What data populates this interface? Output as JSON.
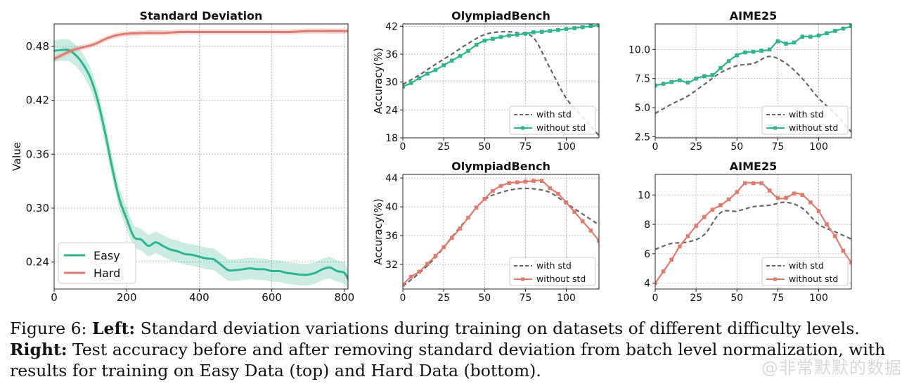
{
  "caption": {
    "fig_label": "Figure 6:",
    "left_bold": "Left:",
    "left_text": "Standard deviation variations during training on datasets of different difficulty levels.",
    "right_bold": "Right:",
    "right_text": "Test accuracy before and after removing standard deviation from batch level normalization, with results for training on Easy Data (top) and Hard Data (bottom)."
  },
  "watermark": "@非常默默的数据",
  "colors": {
    "easy": "#2db58e",
    "hard": "#e07b6e",
    "with_std": "#666666"
  },
  "chart_data": [
    {
      "id": "std",
      "type": "line",
      "title": "Standard Deviation",
      "xlabel": "",
      "ylabel": "Value",
      "xlim": [
        0,
        810
      ],
      "ylim": [
        0.21,
        0.505
      ],
      "xticks": [
        0,
        200,
        400,
        600,
        800
      ],
      "yticks": [
        0.24,
        0.3,
        0.36,
        0.42,
        0.48
      ],
      "ytick_labels": [
        "0.24",
        "0.30",
        "0.36",
        "0.42",
        "0.48"
      ],
      "grid": true,
      "legend": "lower-left",
      "series": [
        {
          "name": "Easy",
          "color": "easy",
          "band": 0.012,
          "x": [
            0,
            20,
            40,
            60,
            80,
            100,
            120,
            140,
            160,
            180,
            200,
            220,
            240,
            260,
            280,
            300,
            320,
            340,
            360,
            380,
            400,
            420,
            440,
            460,
            480,
            500,
            520,
            540,
            560,
            580,
            600,
            620,
            640,
            660,
            680,
            700,
            720,
            740,
            760,
            780,
            800,
            810
          ],
          "y": [
            0.475,
            0.476,
            0.476,
            0.47,
            0.46,
            0.445,
            0.42,
            0.385,
            0.345,
            0.31,
            0.288,
            0.268,
            0.265,
            0.258,
            0.262,
            0.258,
            0.254,
            0.252,
            0.249,
            0.248,
            0.246,
            0.244,
            0.243,
            0.237,
            0.231,
            0.231,
            0.232,
            0.233,
            0.232,
            0.232,
            0.23,
            0.23,
            0.228,
            0.227,
            0.226,
            0.226,
            0.228,
            0.232,
            0.234,
            0.23,
            0.228,
            0.221
          ]
        },
        {
          "name": "Hard",
          "color": "hard",
          "band": 0.003,
          "x": [
            0,
            20,
            40,
            60,
            80,
            100,
            120,
            140,
            160,
            180,
            200,
            250,
            300,
            350,
            400,
            450,
            500,
            550,
            600,
            650,
            700,
            750,
            800,
            810
          ],
          "y": [
            0.466,
            0.47,
            0.474,
            0.477,
            0.479,
            0.481,
            0.484,
            0.488,
            0.491,
            0.493,
            0.494,
            0.495,
            0.495,
            0.496,
            0.496,
            0.496,
            0.496,
            0.496,
            0.496,
            0.496,
            0.497,
            0.497,
            0.497,
            0.497
          ]
        }
      ]
    },
    {
      "id": "oly_easy",
      "type": "line",
      "title": "OlympiadBench",
      "xlabel": "",
      "ylabel": "Accuracy(%)",
      "xlim": [
        0,
        120
      ],
      "ylim": [
        18,
        42.5
      ],
      "xticks": [
        0,
        25,
        50,
        75,
        100
      ],
      "yticks": [
        18,
        24,
        30,
        36,
        42
      ],
      "ytick_labels": [
        "18",
        "24",
        "30",
        "36",
        "42"
      ],
      "grid": true,
      "legend": "lower-right",
      "series": [
        {
          "name": "with std",
          "color": "with_std",
          "dashed": true,
          "x": [
            0,
            10,
            20,
            30,
            40,
            50,
            60,
            70,
            80,
            90,
            100,
            110,
            120
          ],
          "y": [
            29.5,
            31.5,
            33.8,
            36,
            38.3,
            40.2,
            40.8,
            40.6,
            39.5,
            33,
            26.5,
            22.5,
            18.5
          ]
        },
        {
          "name": "without std",
          "color": "easy",
          "markers": true,
          "x": [
            0,
            5,
            10,
            15,
            20,
            25,
            30,
            35,
            40,
            45,
            50,
            55,
            60,
            65,
            70,
            75,
            80,
            85,
            90,
            95,
            100,
            105,
            110,
            115,
            120
          ],
          "y": [
            29,
            29.8,
            30.8,
            31.8,
            32.6,
            33.6,
            34.6,
            35.6,
            36.7,
            38,
            38.9,
            39.3,
            39.7,
            40,
            40.2,
            40.4,
            40.7,
            40.8,
            41,
            41.2,
            41.4,
            41.6,
            41.8,
            42,
            42.2
          ]
        }
      ]
    },
    {
      "id": "aime_easy",
      "type": "line",
      "title": "AIME25",
      "xlabel": "",
      "ylabel": "",
      "xlim": [
        0,
        120
      ],
      "ylim": [
        2.4,
        12.2
      ],
      "xticks": [
        0,
        25,
        50,
        75,
        100
      ],
      "yticks": [
        2.5,
        5.0,
        7.5,
        10.0
      ],
      "ytick_labels": [
        "2.5",
        "5.0",
        "7.5",
        "10.0"
      ],
      "grid": true,
      "legend": "lower-right",
      "series": [
        {
          "name": "with std",
          "color": "with_std",
          "dashed": true,
          "x": [
            0,
            10,
            20,
            30,
            40,
            50,
            60,
            70,
            80,
            90,
            100,
            110,
            120
          ],
          "y": [
            4.5,
            5.3,
            6,
            7,
            8,
            8.6,
            8.8,
            9.4,
            8.8,
            7.5,
            5.8,
            4.5,
            2.9
          ]
        },
        {
          "name": "without std",
          "color": "easy",
          "markers": true,
          "x": [
            0,
            5,
            10,
            15,
            20,
            25,
            30,
            35,
            40,
            45,
            50,
            55,
            60,
            65,
            70,
            75,
            80,
            85,
            90,
            95,
            100,
            105,
            110,
            115,
            120
          ],
          "y": [
            6.9,
            7.05,
            7.2,
            7.35,
            7.15,
            7.5,
            7.7,
            7.8,
            8.4,
            9,
            9.5,
            9.75,
            9.8,
            9.9,
            10,
            10.7,
            10.5,
            10.6,
            11.1,
            11.1,
            11.2,
            11.4,
            11.6,
            11.8,
            12
          ]
        }
      ]
    },
    {
      "id": "oly_hard",
      "type": "line",
      "title": "OlympiadBench",
      "xlabel": "",
      "ylabel": "Accuracy(%)",
      "xlim": [
        0,
        120
      ],
      "ylim": [
        28.6,
        44.5
      ],
      "xticks": [
        0,
        25,
        50,
        75,
        100
      ],
      "yticks": [
        32,
        36,
        40,
        44
      ],
      "ytick_labels": [
        "32",
        "36",
        "40",
        "44"
      ],
      "grid": true,
      "legend": "lower-right",
      "series": [
        {
          "name": "with std",
          "color": "with_std",
          "dashed": true,
          "x": [
            0,
            10,
            20,
            30,
            40,
            50,
            60,
            70,
            80,
            90,
            100,
            110,
            120
          ],
          "y": [
            29,
            30.8,
            33,
            35.8,
            38.5,
            41,
            42,
            42.5,
            42.5,
            42,
            40.5,
            39,
            37.5
          ]
        },
        {
          "name": "without std",
          "color": "hard",
          "markers": true,
          "x": [
            0,
            5,
            10,
            15,
            20,
            25,
            30,
            35,
            40,
            45,
            50,
            55,
            60,
            65,
            70,
            75,
            80,
            85,
            90,
            95,
            100,
            105,
            110,
            115,
            120
          ],
          "y": [
            29.2,
            30.3,
            31,
            32.1,
            33.2,
            34.4,
            35.7,
            37,
            38.5,
            39.9,
            41.1,
            42.2,
            42.9,
            43.3,
            43.4,
            43.5,
            43.6,
            43.6,
            42.6,
            41.8,
            40.6,
            39.3,
            38,
            36.7,
            35.3
          ]
        }
      ]
    },
    {
      "id": "aime_hard",
      "type": "line",
      "title": "AIME25",
      "xlabel": "",
      "ylabel": "",
      "xlim": [
        0,
        120
      ],
      "ylim": [
        3.6,
        11.4
      ],
      "xticks": [
        0,
        25,
        50,
        75,
        100
      ],
      "yticks": [
        4,
        6,
        8,
        10
      ],
      "ytick_labels": [
        "4",
        "6",
        "8",
        "10"
      ],
      "grid": true,
      "legend": "lower-right",
      "series": [
        {
          "name": "with std",
          "color": "with_std",
          "dashed": true,
          "x": [
            0,
            10,
            20,
            30,
            40,
            50,
            60,
            70,
            80,
            90,
            100,
            110,
            120
          ],
          "y": [
            6.3,
            6.7,
            6.8,
            7.3,
            8.8,
            8.9,
            9.2,
            9.3,
            9.5,
            9.1,
            8,
            7.5,
            7
          ]
        },
        {
          "name": "without std",
          "color": "hard",
          "markers": true,
          "x": [
            0,
            5,
            10,
            15,
            20,
            25,
            30,
            35,
            40,
            45,
            50,
            55,
            60,
            65,
            70,
            75,
            80,
            85,
            90,
            95,
            100,
            105,
            110,
            115,
            120
          ],
          "y": [
            4,
            4.8,
            5.6,
            6.5,
            7.2,
            7.9,
            8.5,
            9,
            9.3,
            9.7,
            10.2,
            10.8,
            10.8,
            10.8,
            10.3,
            9.8,
            9.8,
            10.1,
            10,
            9.5,
            8.9,
            8,
            7.2,
            6.2,
            5.4
          ]
        }
      ]
    }
  ]
}
